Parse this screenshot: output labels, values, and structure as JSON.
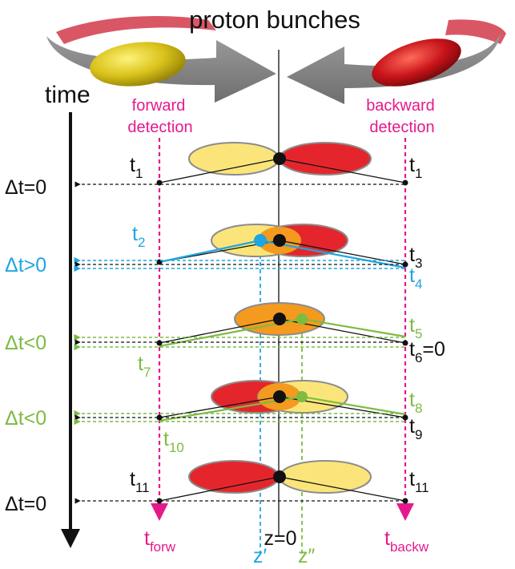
{
  "title": "proton bunches",
  "time_label": "time",
  "forward_detection": [
    "forward",
    "detection"
  ],
  "backward_detection": [
    "backward",
    "detection"
  ],
  "rows": [
    {
      "dt": "Δt=0",
      "left_t": "t",
      "left_sub": "1",
      "right_t": "t",
      "right_sub": "1"
    },
    {
      "dt": "Δt>0",
      "left_t": "t",
      "left_sub": "2",
      "right_t": "t",
      "right_sub": "3",
      "right_t2": "t",
      "right_sub2": "4"
    },
    {
      "dt": "Δt<0",
      "left_t": "t",
      "left_sub": "7",
      "right_t": "t",
      "right_sub": "5",
      "right_t2": "t",
      "right_sub2": "6",
      "right_suffix2": "=0"
    },
    {
      "dt": "Δt<0",
      "left_t": "t",
      "left_sub": "10",
      "right_t": "t",
      "right_sub": "8",
      "right_t2": "t",
      "right_sub2": "9"
    },
    {
      "dt": "Δt=0",
      "left_t": "t",
      "left_sub": "11",
      "right_t": "t",
      "right_sub": "11"
    }
  ],
  "bottom": {
    "t_forw": "t",
    "t_forw_sub": "forw",
    "t_backw": "t",
    "t_backw_sub": "backw",
    "z0": "z=0",
    "z_prime": "z′",
    "z_dprime": "z″"
  },
  "colors": {
    "magenta": "#e6198c",
    "blue": "#1ea6e0",
    "green": "#7dbb42",
    "yellow": "#fbe57a",
    "red": "#e4262c",
    "orange": "#f49a1e",
    "grey": "#8c8c8c",
    "black": "#111111"
  }
}
